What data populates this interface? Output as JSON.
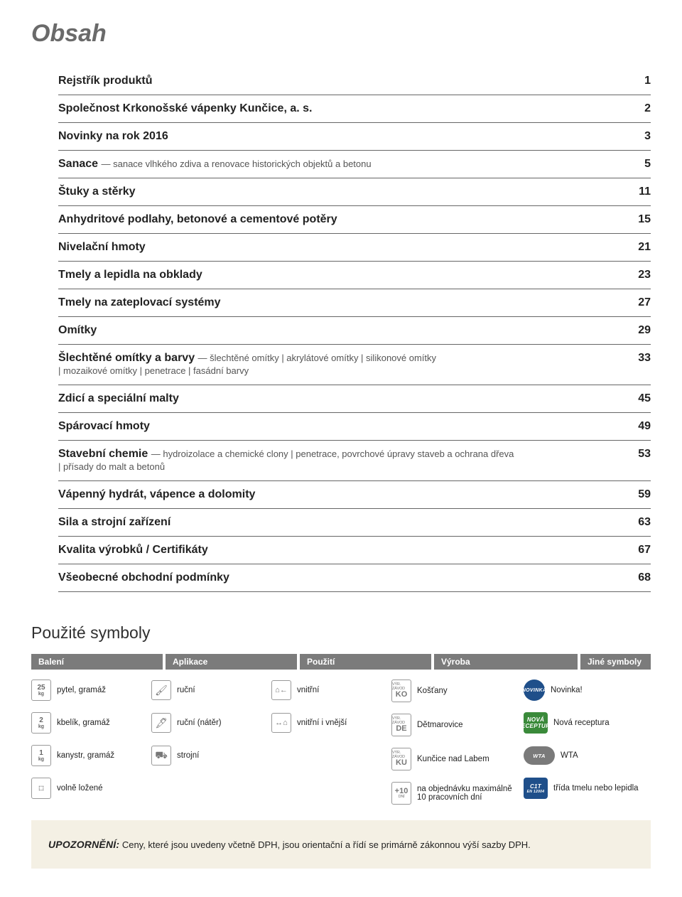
{
  "title": "Obsah",
  "toc": [
    {
      "label": "Rejstřík produktů",
      "page": "1"
    },
    {
      "label": "Společnost Krkonošské vápenky Kunčice, a. s.",
      "page": "2"
    },
    {
      "label": "Novinky na rok 2016",
      "page": "3"
    },
    {
      "label": "Sanace",
      "sub": "— sanace vlhkého zdiva a renovace historických objektů a betonu",
      "page": "5"
    },
    {
      "label": "Štuky a stěrky",
      "page": "11"
    },
    {
      "label": "Anhydritové podlahy, betonové a cementové potěry",
      "page": "15"
    },
    {
      "label": "Nivelační hmoty",
      "page": "21"
    },
    {
      "label": "Tmely a lepidla na obklady",
      "page": "23"
    },
    {
      "label": "Tmely na zateplovací systémy",
      "page": "27"
    },
    {
      "label": "Omítky",
      "page": "29"
    },
    {
      "label": "Šlechtěné omítky a barvy",
      "sub": "— šlechtěné omítky | akrylátové omítky | silikonové omítky<br>| mozaikové omítky | penetrace | fasádní barvy",
      "page": "33"
    },
    {
      "label": "Zdicí a speciální malty",
      "page": "45"
    },
    {
      "label": "Spárovací hmoty",
      "page": "49"
    },
    {
      "label": "Stavební chemie",
      "sub": "— hydroizolace a chemické clony | penetrace, povrchové úpravy staveb a ochrana dřeva<br>| přísady do malt a betonů",
      "page": "53"
    },
    {
      "label": "Vápenný hydrát, vápence a dolomity",
      "page": "59"
    },
    {
      "label": "Sila a strojní zařízení",
      "page": "63"
    },
    {
      "label": "Kvalita výrobků / Certifikáty",
      "page": "67"
    },
    {
      "label": "Všeobecné obchodní podmínky",
      "page": "68"
    }
  ],
  "symbols_heading": "Použité symboly",
  "sym_headers": {
    "c1": "Balení",
    "c2": "Aplikace",
    "c3": "Použití",
    "c4": "Výroba",
    "c5": "Jiné symboly"
  },
  "sym": {
    "c1": [
      {
        "kg": "25",
        "label": "pytel, gramáž"
      },
      {
        "kg": "2",
        "label": "kbelík, gramáž"
      },
      {
        "kg": "1",
        "label": "kanystr, gramáž"
      },
      {
        "kg": "",
        "label": "volně ložené"
      }
    ],
    "c2": [
      {
        "glyph": "🖌",
        "label": "ruční"
      },
      {
        "glyph": "🖋",
        "label": "ruční (nátěr)"
      },
      {
        "glyph": "⛟",
        "label": "strojní"
      }
    ],
    "c3": [
      {
        "glyph": "⌂←",
        "label": "vnitřní"
      },
      {
        "glyph": "↔⌂",
        "label": "vnitřní i vnější"
      }
    ],
    "c4": [
      {
        "top": "VÝR. ZÁVOD",
        "code": "KO",
        "label": "Košťany"
      },
      {
        "top": "VÝR. ZÁVOD",
        "code": "DE",
        "label": "Dětmarovice"
      },
      {
        "top": "VÝR. ZÁVOD",
        "code": "KU",
        "label": "Kunčice nad Labem"
      },
      {
        "top": "",
        "code": "+10",
        "sub": "DNÍ",
        "label": "na objednávku maximálně 10 pracovních dní"
      }
    ],
    "c5": [
      {
        "text": "NOVINKA",
        "cls": "blue circ",
        "label": "Novinka!"
      },
      {
        "text": "NOVÁ\nRECEPTURA",
        "cls": "green sq",
        "label": "Nová receptura"
      },
      {
        "text": "WTA",
        "cls": "gray",
        "label": "WTA"
      },
      {
        "text": "C1T",
        "cls": "blue sq",
        "label": "třída tmelu nebo lepidla",
        "sub": "EN 12004"
      }
    ]
  },
  "warning": {
    "label": "UPOZORNĚNÍ:",
    "text": "Ceny, které jsou uvedeny včetně DPH, jsou orientační a řídí se primárně zákonnou výší sazby DPH."
  }
}
